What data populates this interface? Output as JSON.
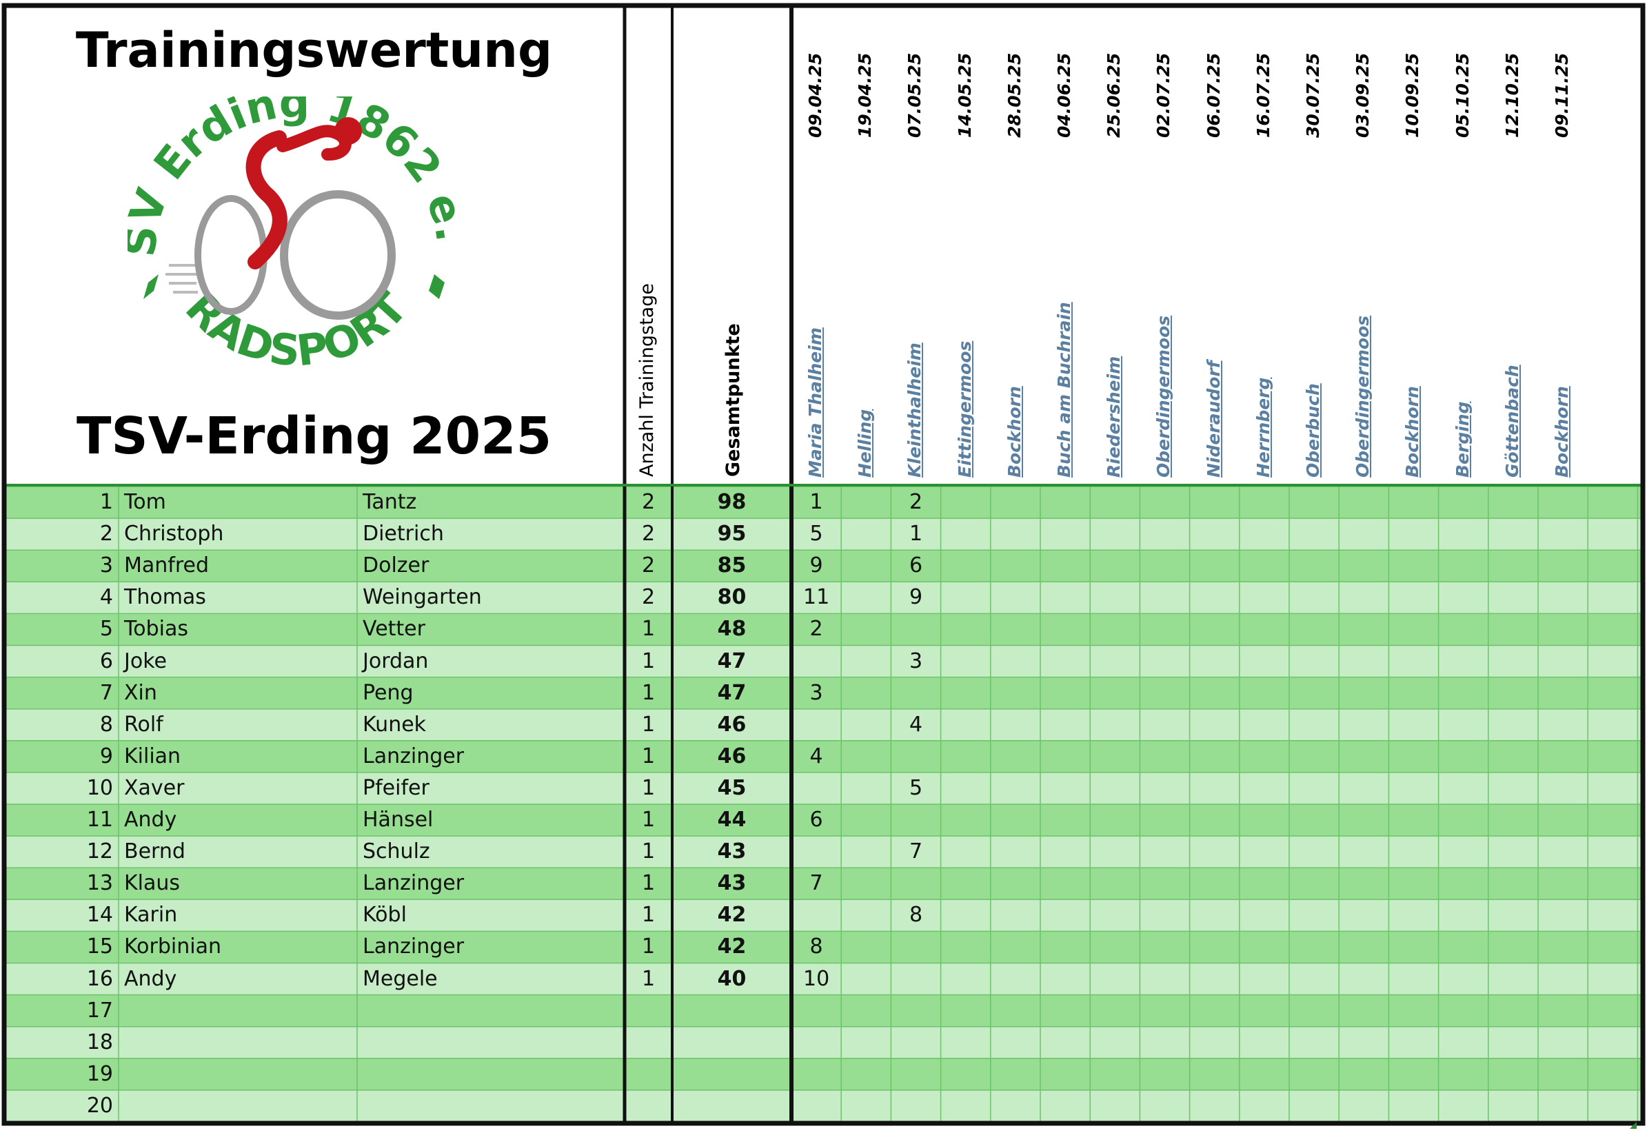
{
  "header": {
    "title": "Trainingswertung",
    "subtitle": "TSV-Erding 2025",
    "logo": {
      "top_text": "TSV Erding 1862 e.V.",
      "bottom_text": "RADSPORT",
      "colors": {
        "green": "#2e9a3a",
        "red": "#c4161c",
        "gray": "#9a9a9a"
      }
    },
    "col_training_days": "Anzahl Trainingstage",
    "col_total": "Gesamtpunkte"
  },
  "sessions": [
    {
      "date": "09.04.25",
      "location": "Maria Thalheim"
    },
    {
      "date": "19.04.25",
      "location": "Helling"
    },
    {
      "date": "07.05.25",
      "location": "Kleinthalheim"
    },
    {
      "date": "14.05.25",
      "location": "Eittingermoos"
    },
    {
      "date": "28.05.25",
      "location": "Bockhorn"
    },
    {
      "date": "04.06.25",
      "location": "Buch am Buchrain"
    },
    {
      "date": "25.06.25",
      "location": "Riedersheim"
    },
    {
      "date": "02.07.25",
      "location": "Oberdingermoos"
    },
    {
      "date": "06.07.25",
      "location": "Nideraudorf"
    },
    {
      "date": "16.07.25",
      "location": "Herrnberg"
    },
    {
      "date": "30.07.25",
      "location": "Oberbuch"
    },
    {
      "date": "03.09.25",
      "location": "Oberdingermoos"
    },
    {
      "date": "10.09.25",
      "location": "Bockhorn"
    },
    {
      "date": "05.10.25",
      "location": "Berging"
    },
    {
      "date": "12.10.25",
      "location": "Göttenbach"
    },
    {
      "date": "09.11.25",
      "location": "Bockhorn"
    }
  ],
  "rows": [
    {
      "rank": "1",
      "first": "Tom",
      "last": "Tantz",
      "days": "2",
      "total": "98",
      "places": [
        "1",
        "",
        "2",
        "",
        "",
        "",
        "",
        "",
        "",
        "",
        "",
        "",
        "",
        "",
        "",
        ""
      ]
    },
    {
      "rank": "2",
      "first": "Christoph",
      "last": "Dietrich",
      "days": "2",
      "total": "95",
      "places": [
        "5",
        "",
        "1",
        "",
        "",
        "",
        "",
        "",
        "",
        "",
        "",
        "",
        "",
        "",
        "",
        ""
      ]
    },
    {
      "rank": "3",
      "first": "Manfred",
      "last": "Dolzer",
      "days": "2",
      "total": "85",
      "places": [
        "9",
        "",
        "6",
        "",
        "",
        "",
        "",
        "",
        "",
        "",
        "",
        "",
        "",
        "",
        "",
        ""
      ]
    },
    {
      "rank": "4",
      "first": "Thomas",
      "last": "Weingarten",
      "days": "2",
      "total": "80",
      "places": [
        "11",
        "",
        "9",
        "",
        "",
        "",
        "",
        "",
        "",
        "",
        "",
        "",
        "",
        "",
        "",
        ""
      ]
    },
    {
      "rank": "5",
      "first": "Tobias",
      "last": "Vetter",
      "days": "1",
      "total": "48",
      "places": [
        "2",
        "",
        "",
        "",
        "",
        "",
        "",
        "",
        "",
        "",
        "",
        "",
        "",
        "",
        "",
        ""
      ]
    },
    {
      "rank": "6",
      "first": "Joke",
      "last": "Jordan",
      "days": "1",
      "total": "47",
      "places": [
        "",
        "",
        "3",
        "",
        "",
        "",
        "",
        "",
        "",
        "",
        "",
        "",
        "",
        "",
        "",
        ""
      ]
    },
    {
      "rank": "7",
      "first": "Xin",
      "last": "Peng",
      "days": "1",
      "total": "47",
      "places": [
        "3",
        "",
        "",
        "",
        "",
        "",
        "",
        "",
        "",
        "",
        "",
        "",
        "",
        "",
        "",
        ""
      ]
    },
    {
      "rank": "8",
      "first": "Rolf",
      "last": "Kunek",
      "days": "1",
      "total": "46",
      "places": [
        "",
        "",
        "4",
        "",
        "",
        "",
        "",
        "",
        "",
        "",
        "",
        "",
        "",
        "",
        "",
        ""
      ]
    },
    {
      "rank": "9",
      "first": "Kilian",
      "last": "Lanzinger",
      "days": "1",
      "total": "46",
      "places": [
        "4",
        "",
        "",
        "",
        "",
        "",
        "",
        "",
        "",
        "",
        "",
        "",
        "",
        "",
        "",
        ""
      ]
    },
    {
      "rank": "10",
      "first": "Xaver",
      "last": "Pfeifer",
      "days": "1",
      "total": "45",
      "places": [
        "",
        "",
        "5",
        "",
        "",
        "",
        "",
        "",
        "",
        "",
        "",
        "",
        "",
        "",
        "",
        ""
      ]
    },
    {
      "rank": "11",
      "first": "Andy",
      "last": "Hänsel",
      "days": "1",
      "total": "44",
      "places": [
        "6",
        "",
        "",
        "",
        "",
        "",
        "",
        "",
        "",
        "",
        "",
        "",
        "",
        "",
        "",
        ""
      ]
    },
    {
      "rank": "12",
      "first": "Bernd",
      "last": "Schulz",
      "days": "1",
      "total": "43",
      "places": [
        "",
        "",
        "7",
        "",
        "",
        "",
        "",
        "",
        "",
        "",
        "",
        "",
        "",
        "",
        "",
        ""
      ]
    },
    {
      "rank": "13",
      "first": "Klaus",
      "last": "Lanzinger",
      "days": "1",
      "total": "43",
      "places": [
        "7",
        "",
        "",
        "",
        "",
        "",
        "",
        "",
        "",
        "",
        "",
        "",
        "",
        "",
        "",
        ""
      ]
    },
    {
      "rank": "14",
      "first": "Karin",
      "last": "Köbl",
      "days": "1",
      "total": "42",
      "places": [
        "",
        "",
        "8",
        "",
        "",
        "",
        "",
        "",
        "",
        "",
        "",
        "",
        "",
        "",
        "",
        ""
      ]
    },
    {
      "rank": "15",
      "first": "Korbinian",
      "last": "Lanzinger",
      "days": "1",
      "total": "42",
      "places": [
        "8",
        "",
        "",
        "",
        "",
        "",
        "",
        "",
        "",
        "",
        "",
        "",
        "",
        "",
        "",
        ""
      ]
    },
    {
      "rank": "16",
      "first": "Andy",
      "last": "Megele",
      "days": "1",
      "total": "40",
      "places": [
        "10",
        "",
        "",
        "",
        "",
        "",
        "",
        "",
        "",
        "",
        "",
        "",
        "",
        "",
        "",
        ""
      ]
    },
    {
      "rank": "17",
      "first": "",
      "last": "",
      "days": "",
      "total": "",
      "places": []
    },
    {
      "rank": "18",
      "first": "",
      "last": "",
      "days": "",
      "total": "",
      "places": []
    },
    {
      "rank": "19",
      "first": "",
      "last": "",
      "days": "",
      "total": "",
      "places": []
    },
    {
      "rank": "20",
      "first": "",
      "last": "",
      "days": "",
      "total": "",
      "places": []
    }
  ],
  "colors": {
    "row_dark": "#97de92",
    "row_light": "#c6edc6",
    "grid_line": "#6cc36a",
    "header_border": "#2b8f35",
    "location_text": "#5a7fa0"
  }
}
